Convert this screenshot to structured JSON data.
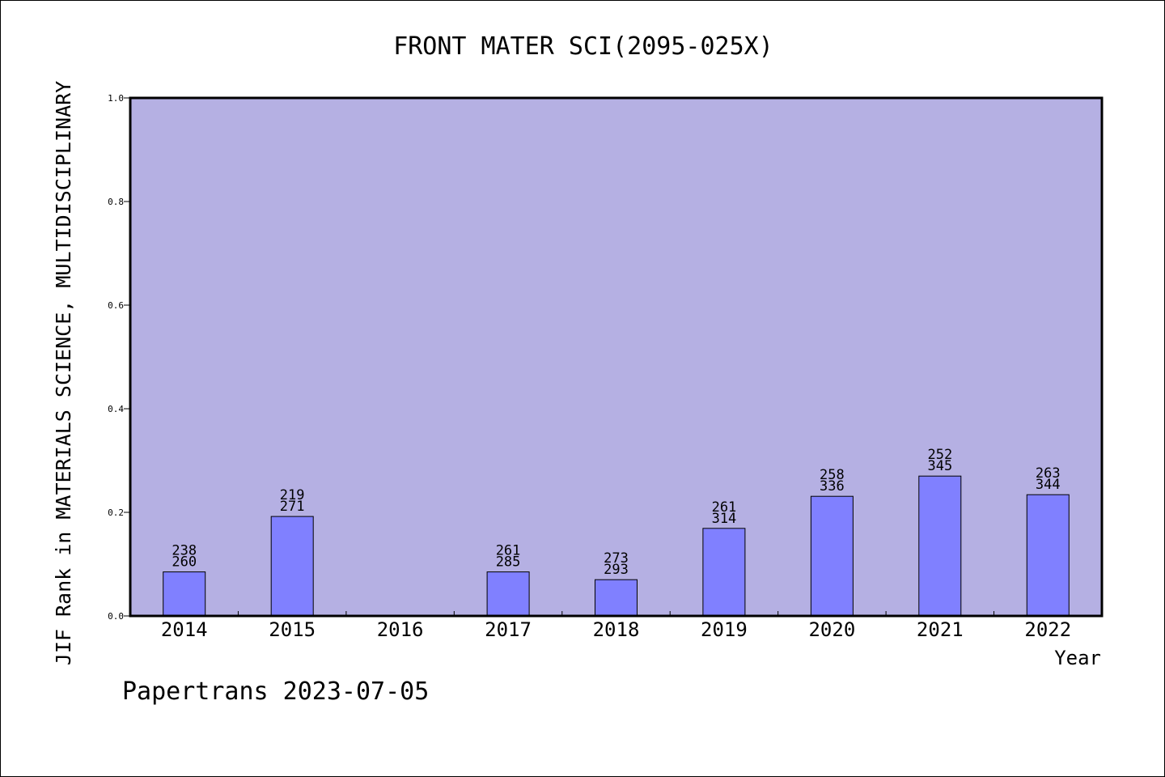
{
  "chart_data": {
    "type": "bar",
    "title": "FRONT MATER SCI(2095-025X)",
    "xlabel": "Year",
    "ylabel": "JIF Rank in MATERIALS SCIENCE, MULTIDISCIPLINARY",
    "categories": [
      "2014",
      "2015",
      "2016",
      "2017",
      "2018",
      "2019",
      "2020",
      "2021",
      "2022"
    ],
    "ylim": [
      0,
      1.0
    ],
    "yticks": [
      "0.0",
      "0.2",
      "0.4",
      "0.6",
      "0.8",
      "1.0"
    ],
    "series": [
      {
        "values": [
          0.085,
          0.192,
          null,
          0.085,
          0.07,
          0.169,
          0.231,
          0.27,
          0.234
        ],
        "rank": [
          "238",
          "219",
          "",
          "261",
          "273",
          "261",
          "258",
          "252",
          "263"
        ],
        "total": [
          "260",
          "271",
          "",
          "285",
          "293",
          "314",
          "336",
          "345",
          "344"
        ]
      }
    ],
    "grid": false,
    "colors": {
      "plot_background": "#b5b0e3",
      "bar_fill": "#8080ff",
      "bar_stroke": "#000000"
    }
  },
  "footer": {
    "text": "Papertrans 2023-07-05"
  }
}
